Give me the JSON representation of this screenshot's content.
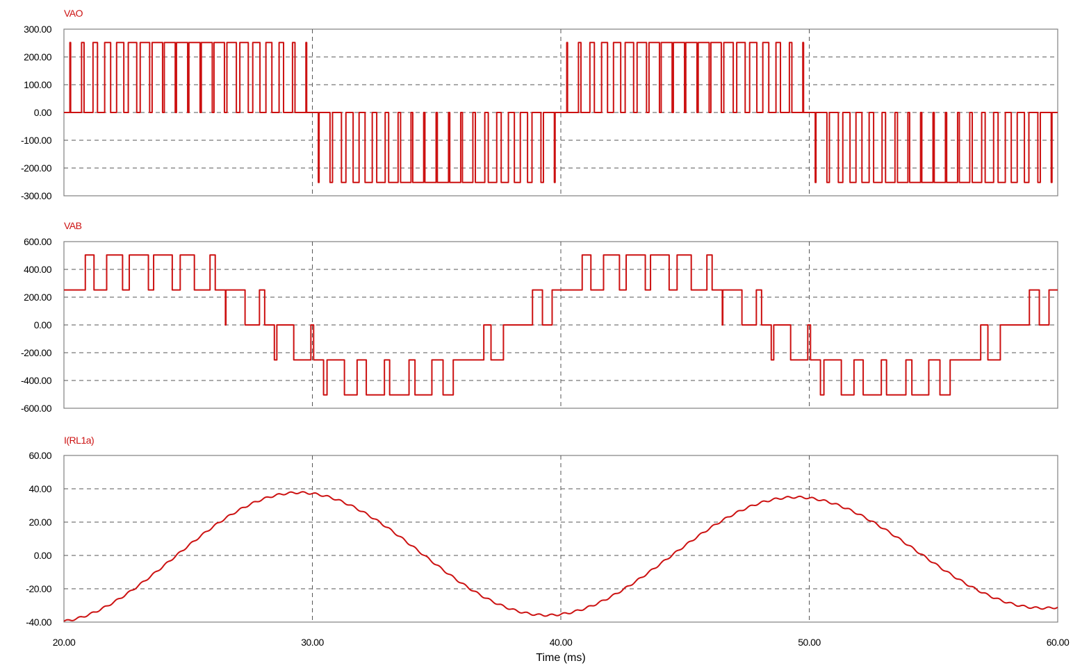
{
  "colors": {
    "trace": "#cc1111",
    "frame": "#808080",
    "grid": "#555555",
    "text": "#000000"
  },
  "chart_data": [
    {
      "type": "line",
      "series": [
        {
          "name": "VAO"
        }
      ],
      "x": [
        20,
        20.04,
        21,
        21.4,
        22,
        22.6,
        23,
        23.3,
        24,
        24.5,
        25,
        26,
        27,
        28,
        29
      ],
      "ylim": [
        -300,
        300
      ],
      "yticks": [
        "300.00",
        "200.00",
        "100.00",
        "0.00",
        "-100.00",
        "-200.00",
        "-300.00"
      ],
      "shape": {
        "amplitude": 252,
        "switching_frequency_khz": 1,
        "modulation_index": 0.9,
        "fundamental_hz": 50
      }
    },
    {
      "type": "line",
      "series": [
        {
          "name": "VAB"
        }
      ],
      "ylim": [
        -600,
        600
      ],
      "yticks": [
        "600.00",
        "400.00",
        "200.00",
        "0.00",
        "-200.00",
        "-400.00",
        "-600.00"
      ],
      "shape": {
        "levels": [
          -504,
          -252,
          0,
          252,
          504
        ],
        "switching_frequency_khz": 1,
        "modulation_index": 0.9,
        "fundamental_hz": 50,
        "phase_lead_deg": 30
      }
    },
    {
      "type": "line",
      "series": [
        {
          "name": "I(RL1a)"
        }
      ],
      "ylim": [
        -40,
        60
      ],
      "yticks": [
        "60.00",
        "40.00",
        "20.00",
        "0.00",
        "-20.00",
        "-40.00"
      ],
      "shape": {
        "fundamental_hz": 50,
        "amplitude_start": 39.5,
        "amplitude_end": 32.5,
        "offset_start": -0.5,
        "offset_end": 1,
        "peak_time_ms": 29.5,
        "ripple": 0.6
      }
    }
  ],
  "x_axis": {
    "range": [
      20,
      60
    ],
    "unit": "ms",
    "ticks": [
      "20.00",
      "30.00",
      "40.00",
      "50.00",
      "60.00"
    ],
    "title": "Time (ms)"
  }
}
